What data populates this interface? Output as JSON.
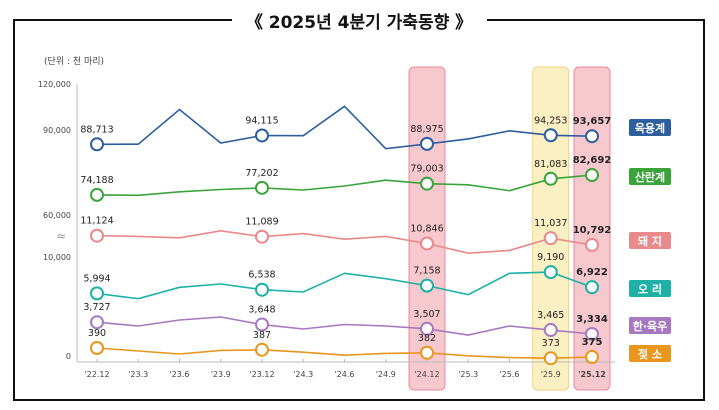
{
  "chart_data": {
    "type": "line",
    "title": "《 2025년 4분기 가축동향 》",
    "unit_label": "(단위 : 천 마리)",
    "y_ticks": [
      "120,000",
      "90,000",
      "60,000",
      "10,000",
      "0"
    ],
    "axis_break": "≈",
    "x": [
      "'22.12",
      "'23.3",
      "'23.6",
      "'23.9",
      "'23.12",
      "'24.3",
      "'24.6",
      "'24.9",
      "'24.12",
      "'25.3",
      "'25.6",
      "'25.9",
      "'25.12"
    ],
    "highlighted": [
      {
        "x": "'24.12",
        "color": "#f7c9cf"
      },
      {
        "x": "'25.9",
        "color": "#fbefc4"
      },
      {
        "x": "'25.12",
        "color": "#f7c9cf"
      }
    ],
    "labeled_points": [
      "'22.12",
      "'23.12",
      "'24.12",
      "'25.9",
      "'25.12"
    ],
    "series": [
      {
        "name": "육용계",
        "color": "#2d5f9e",
        "values": [
          88713,
          88800,
          110000,
          89500,
          94115,
          94000,
          112000,
          86000,
          88975,
          92000,
          97000,
          94253,
          93657
        ],
        "labels": [
          "88,713",
          "94,115",
          "88,975",
          "94,253",
          "93,657"
        ]
      },
      {
        "name": "산란계",
        "color": "#3aa33a",
        "values": [
          74188,
          74000,
          75500,
          76500,
          77202,
          76300,
          78000,
          80500,
          79003,
          78500,
          76000,
          81083,
          82692
        ],
        "labels": [
          "74,188",
          "77,202",
          "79,003",
          "81,083",
          "82,692"
        ]
      },
      {
        "name": "돼 지",
        "color": "#e8898c",
        "values": [
          11124,
          11100,
          11050,
          11300,
          11089,
          11200,
          11000,
          11100,
          10846,
          10500,
          10600,
          11037,
          10792
        ],
        "labels": [
          "11,124",
          "11,089",
          "10,846",
          "11,037",
          "10,792"
        ]
      },
      {
        "name": "오 리",
        "color": "#1fb0a6",
        "values": [
          5994,
          5200,
          6900,
          7400,
          6538,
          6200,
          9000,
          8200,
          7158,
          5800,
          9000,
          9190,
          6922
        ],
        "labels": [
          "5,994",
          "6,538",
          "7,158",
          "9,190",
          "6,922"
        ]
      },
      {
        "name": "한·육우",
        "color": "#a678c0",
        "values": [
          3727,
          3600,
          3800,
          3900,
          3648,
          3500,
          3650,
          3600,
          3507,
          3300,
          3600,
          3465,
          3334
        ],
        "labels": [
          "3,727",
          "3,648",
          "3,507",
          "3,465",
          "3,334"
        ]
      },
      {
        "name": "젖 소",
        "color": "#e8961e",
        "values": [
          390,
          385,
          380,
          386,
          387,
          383,
          378,
          381,
          382,
          377,
          374,
          373,
          375
        ],
        "labels": [
          "390",
          "387",
          "382",
          "373",
          "375"
        ]
      }
    ]
  }
}
